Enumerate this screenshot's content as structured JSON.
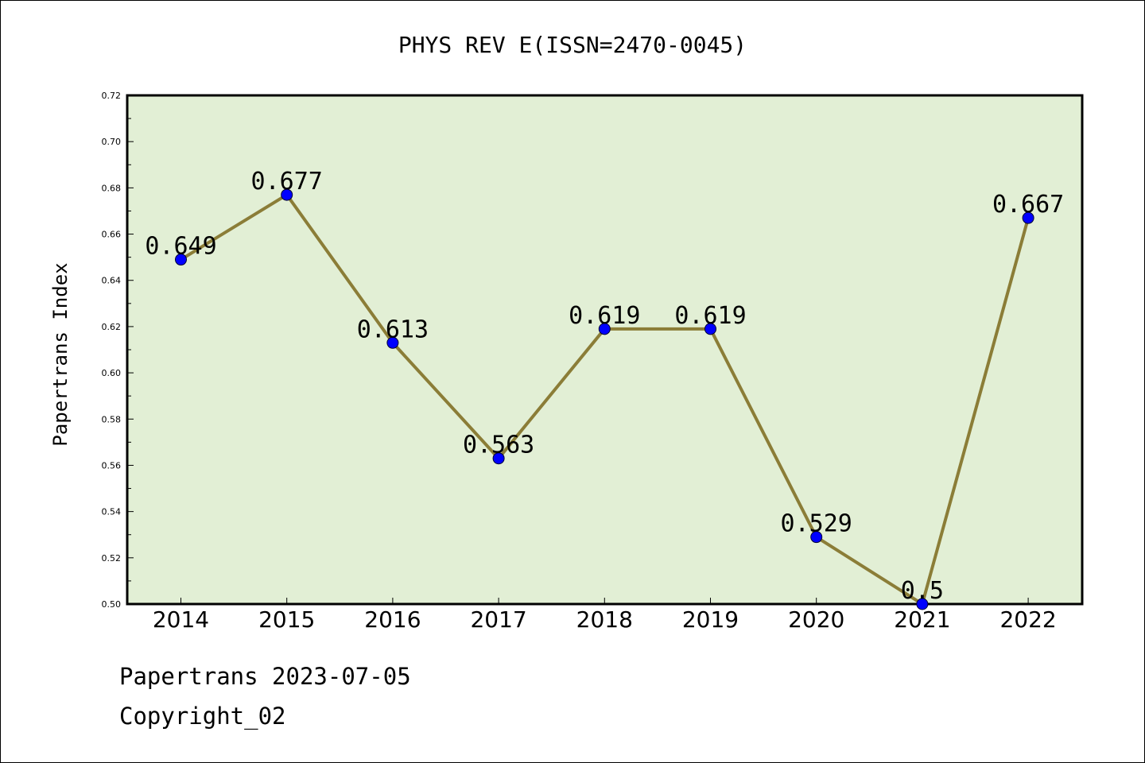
{
  "chart_data": {
    "type": "line",
    "title": "PHYS REV E(ISSN=2470-0045)",
    "xlabel": "",
    "ylabel": "Papertrans Index",
    "categories": [
      "2014",
      "2015",
      "2016",
      "2017",
      "2018",
      "2019",
      "2020",
      "2021",
      "2022"
    ],
    "values": [
      0.649,
      0.677,
      0.613,
      0.563,
      0.619,
      0.619,
      0.529,
      0.5,
      0.667
    ],
    "data_labels": [
      "0.649",
      "0.677",
      "0.613",
      "0.563",
      "0.619",
      "0.619",
      "0.529",
      "0.5",
      "0.667"
    ],
    "ylim": [
      0.5,
      0.72
    ],
    "yticks": [
      "0.50",
      "0.52",
      "0.54",
      "0.56",
      "0.58",
      "0.60",
      "0.62",
      "0.64",
      "0.66",
      "0.68",
      "0.70",
      "0.72"
    ],
    "grid": false,
    "colors": {
      "plot_background": "#e2efd5",
      "line": "#8b7d37",
      "marker": "#0000ff"
    }
  },
  "footer": {
    "line1": "Papertrans 2023-07-05",
    "line2": "Copyright_02"
  }
}
